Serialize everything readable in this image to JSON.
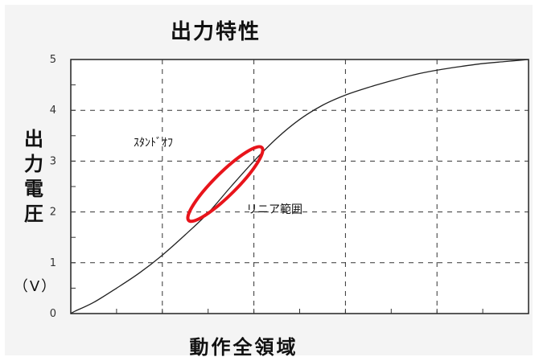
{
  "chart_data": {
    "type": "line",
    "title": "出力特性",
    "xlabel": "動作全領域",
    "ylabel": "出力電圧",
    "yunit": "（V）",
    "ylim": [
      0,
      5
    ],
    "xlim": [
      0,
      1
    ],
    "y_ticks": [
      "0",
      "1",
      "2",
      "3",
      "4",
      "5"
    ],
    "grid": true,
    "annotations": {
      "standoff": "ｽﾀﾝﾄﾞｵﾌ",
      "linear_range": "リニア範囲"
    },
    "highlight": {
      "shape": "ellipse",
      "color": "#e8141b",
      "label": "リニア範囲"
    },
    "series": [
      {
        "x": [
          0.0,
          0.01,
          0.05,
          0.1,
          0.15,
          0.2,
          0.25,
          0.3,
          0.35,
          0.4,
          0.45,
          0.5,
          0.55,
          0.6,
          0.65,
          0.7,
          0.75,
          0.8,
          0.85,
          0.9,
          0.95,
          1.0
        ],
        "y": [
          0.0,
          0.05,
          0.22,
          0.5,
          0.8,
          1.15,
          1.55,
          1.98,
          2.5,
          3.0,
          3.45,
          3.82,
          4.1,
          4.3,
          4.45,
          4.58,
          4.7,
          4.79,
          4.86,
          4.92,
          4.96,
          5.0
        ],
        "color": "#222222"
      }
    ]
  }
}
